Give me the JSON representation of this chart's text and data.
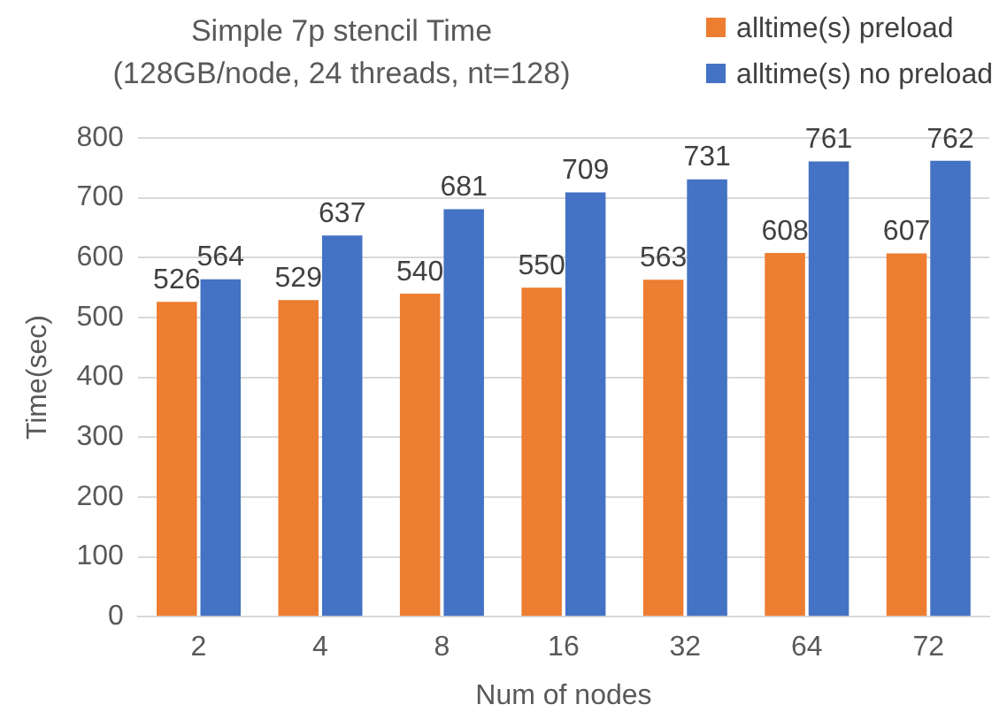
{
  "chart_data": {
    "type": "bar",
    "title": "Simple 7p stencil Time",
    "subtitle": "(128GB/node, 24 threads, nt=128)",
    "xlabel": "Num of nodes",
    "ylabel": "Time(sec)",
    "categories": [
      "2",
      "4",
      "8",
      "16",
      "32",
      "64",
      "72"
    ],
    "series": [
      {
        "name": "alltime(s) preload",
        "color": "#ed7d31",
        "values": [
          526,
          529,
          540,
          550,
          563,
          608,
          607
        ]
      },
      {
        "name": "alltime(s) no preload",
        "color": "#4472c4",
        "values": [
          564,
          637,
          681,
          709,
          731,
          761,
          762
        ]
      }
    ],
    "ylim": [
      0,
      800
    ],
    "yticks": [
      0,
      100,
      200,
      300,
      400,
      500,
      600,
      700,
      800
    ],
    "grid": "y",
    "legend": "top right",
    "data_labels": true
  }
}
